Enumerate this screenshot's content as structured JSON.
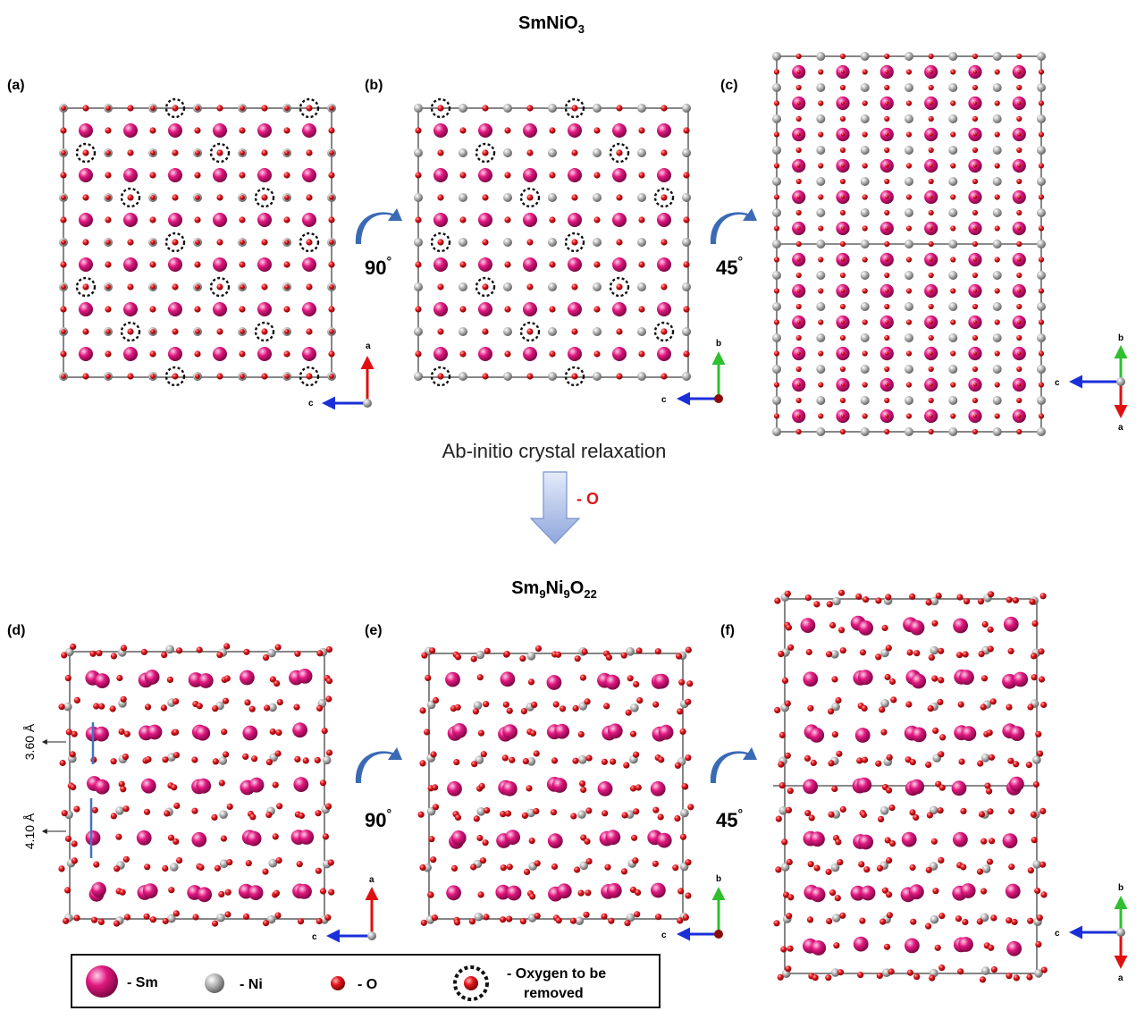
{
  "title_top": {
    "base": "SmNiO",
    "sub": "3"
  },
  "title_bottom": {
    "parts": [
      {
        "t": "Sm"
      },
      {
        "t": "9",
        "sub": true
      },
      {
        "t": "Ni"
      },
      {
        "t": "9",
        "sub": true
      },
      {
        "t": "O"
      },
      {
        "t": "22",
        "sub": true
      }
    ]
  },
  "panel_labels": [
    "(a)",
    "(b)",
    "(c)",
    "(d)",
    "(e)",
    "(f)"
  ],
  "rotations": [
    "90",
    "45"
  ],
  "rotation_unit": "°",
  "relaxation_label": "Ab-initio crystal relaxation",
  "removal_label": "- O",
  "axis_labels": {
    "a": "a",
    "b": "b",
    "c": "c"
  },
  "measurements": [
    "3.60 Å",
    "4.10 Å"
  ],
  "legend": {
    "sm": "- Sm",
    "ni": "- Ni",
    "o": "- O",
    "vacancy_line1": "- Oxygen to be",
    "vacancy_line2": "removed"
  },
  "colors": {
    "sm": "#e0177f",
    "ni": "#a8a8a8",
    "o": "#e2141b",
    "arrow_rotate": "#3b6ab5",
    "arrow_down": "#a9bde8",
    "axis_a": "#e01010",
    "axis_b": "#2fbf2f",
    "axis_c": "#1a2fd8",
    "bond_marker": "#4472c4"
  }
}
